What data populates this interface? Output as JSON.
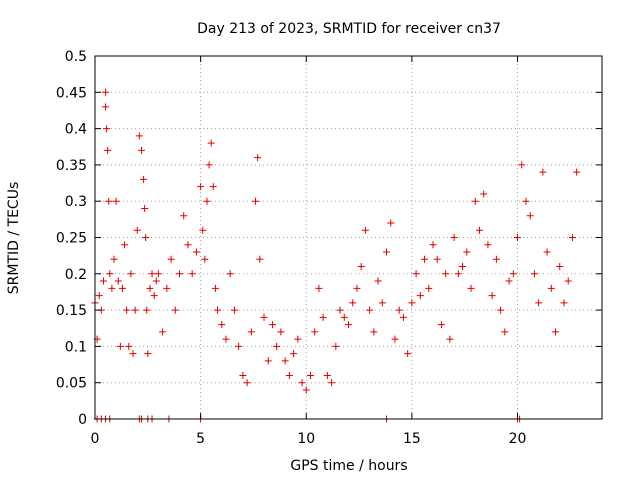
{
  "chart_data": {
    "type": "scatter",
    "title": "Day 213 of 2023, SRMTID for receiver cn37",
    "xlabel": "GPS time / hours",
    "ylabel": "SRMTID / TECUs",
    "xlim": [
      0,
      24
    ],
    "ylim": [
      0,
      0.5
    ],
    "xticks": [
      0,
      5,
      10,
      15,
      20
    ],
    "xtick_labels": [
      "0",
      "5",
      "10",
      "15",
      "20"
    ],
    "yticks": [
      0,
      0.05,
      0.1,
      0.15,
      0.2,
      0.25,
      0.3,
      0.35,
      0.4,
      0.45,
      0.5
    ],
    "ytick_labels": [
      "0",
      "0.05",
      "0.1",
      "0.15",
      "0.2",
      "0.25",
      "0.3",
      "0.35",
      "0.4",
      "0.45",
      "0.5"
    ],
    "grid": true,
    "marker": "+",
    "color": "#e00000",
    "series": [
      {
        "name": "SRMTID",
        "x": [
          0.0,
          0.1,
          0.2,
          0.3,
          0.4,
          0.5,
          0.5,
          0.55,
          0.6,
          0.65,
          0.7,
          0.8,
          0.9,
          1.0,
          1.1,
          1.2,
          1.3,
          1.4,
          1.5,
          1.6,
          1.7,
          1.8,
          1.9,
          2.0,
          2.1,
          2.2,
          2.3,
          2.35,
          2.4,
          2.45,
          2.5,
          2.6,
          2.7,
          2.8,
          2.9,
          3.0,
          3.2,
          3.4,
          3.6,
          3.8,
          4.0,
          4.2,
          4.4,
          4.6,
          4.8,
          5.0,
          5.1,
          5.2,
          5.3,
          5.4,
          5.5,
          5.6,
          5.7,
          5.8,
          6.0,
          6.2,
          6.4,
          6.6,
          6.8,
          7.0,
          7.2,
          7.4,
          7.6,
          7.7,
          7.8,
          8.0,
          8.2,
          8.4,
          8.6,
          8.8,
          9.0,
          9.2,
          9.4,
          9.6,
          9.8,
          10.0,
          10.2,
          10.4,
          10.6,
          10.8,
          11.0,
          11.2,
          11.4,
          11.6,
          11.8,
          12.0,
          12.2,
          12.4,
          12.6,
          12.8,
          13.0,
          13.2,
          13.4,
          13.6,
          13.8,
          14.0,
          14.2,
          14.4,
          14.6,
          14.8,
          15.0,
          15.2,
          15.4,
          15.6,
          15.8,
          16.0,
          16.2,
          16.4,
          16.6,
          16.8,
          17.0,
          17.2,
          17.4,
          17.6,
          17.8,
          18.0,
          18.2,
          18.4,
          18.6,
          18.8,
          19.0,
          19.2,
          19.4,
          19.6,
          19.8,
          20.0,
          20.2,
          20.4,
          20.6,
          20.8,
          21.0,
          21.2,
          21.4,
          21.6,
          21.8,
          22.0,
          22.2,
          22.4,
          22.6,
          22.8,
          0.1,
          0.3,
          0.5,
          0.7,
          2.1,
          2.2,
          2.5,
          2.7,
          3.5,
          5.0,
          13.8,
          20.0,
          20.1
        ],
        "y": [
          0.16,
          0.11,
          0.17,
          0.15,
          0.19,
          0.45,
          0.43,
          0.4,
          0.37,
          0.3,
          0.2,
          0.18,
          0.22,
          0.3,
          0.19,
          0.1,
          0.18,
          0.24,
          0.15,
          0.1,
          0.2,
          0.09,
          0.15,
          0.26,
          0.39,
          0.37,
          0.33,
          0.29,
          0.25,
          0.15,
          0.09,
          0.18,
          0.2,
          0.17,
          0.19,
          0.2,
          0.12,
          0.18,
          0.22,
          0.15,
          0.2,
          0.28,
          0.24,
          0.2,
          0.23,
          0.32,
          0.26,
          0.22,
          0.3,
          0.35,
          0.38,
          0.32,
          0.18,
          0.15,
          0.13,
          0.11,
          0.2,
          0.15,
          0.1,
          0.06,
          0.05,
          0.12,
          0.3,
          0.36,
          0.22,
          0.14,
          0.08,
          0.13,
          0.1,
          0.12,
          0.08,
          0.06,
          0.09,
          0.11,
          0.05,
          0.04,
          0.06,
          0.12,
          0.18,
          0.14,
          0.06,
          0.05,
          0.1,
          0.15,
          0.14,
          0.13,
          0.16,
          0.18,
          0.21,
          0.26,
          0.15,
          0.12,
          0.19,
          0.16,
          0.23,
          0.27,
          0.11,
          0.15,
          0.14,
          0.09,
          0.16,
          0.2,
          0.17,
          0.22,
          0.18,
          0.24,
          0.22,
          0.13,
          0.2,
          0.11,
          0.25,
          0.2,
          0.21,
          0.23,
          0.18,
          0.3,
          0.26,
          0.31,
          0.24,
          0.17,
          0.22,
          0.15,
          0.12,
          0.19,
          0.2,
          0.25,
          0.35,
          0.3,
          0.28,
          0.2,
          0.16,
          0.34,
          0.23,
          0.18,
          0.12,
          0.21,
          0.16,
          0.19,
          0.25,
          0.34,
          0.0,
          0.0,
          0.0,
          0.0,
          0.0,
          0.0,
          0.0,
          0.0,
          0.0,
          0.0,
          0.0,
          0.0,
          0.0
        ]
      }
    ]
  }
}
